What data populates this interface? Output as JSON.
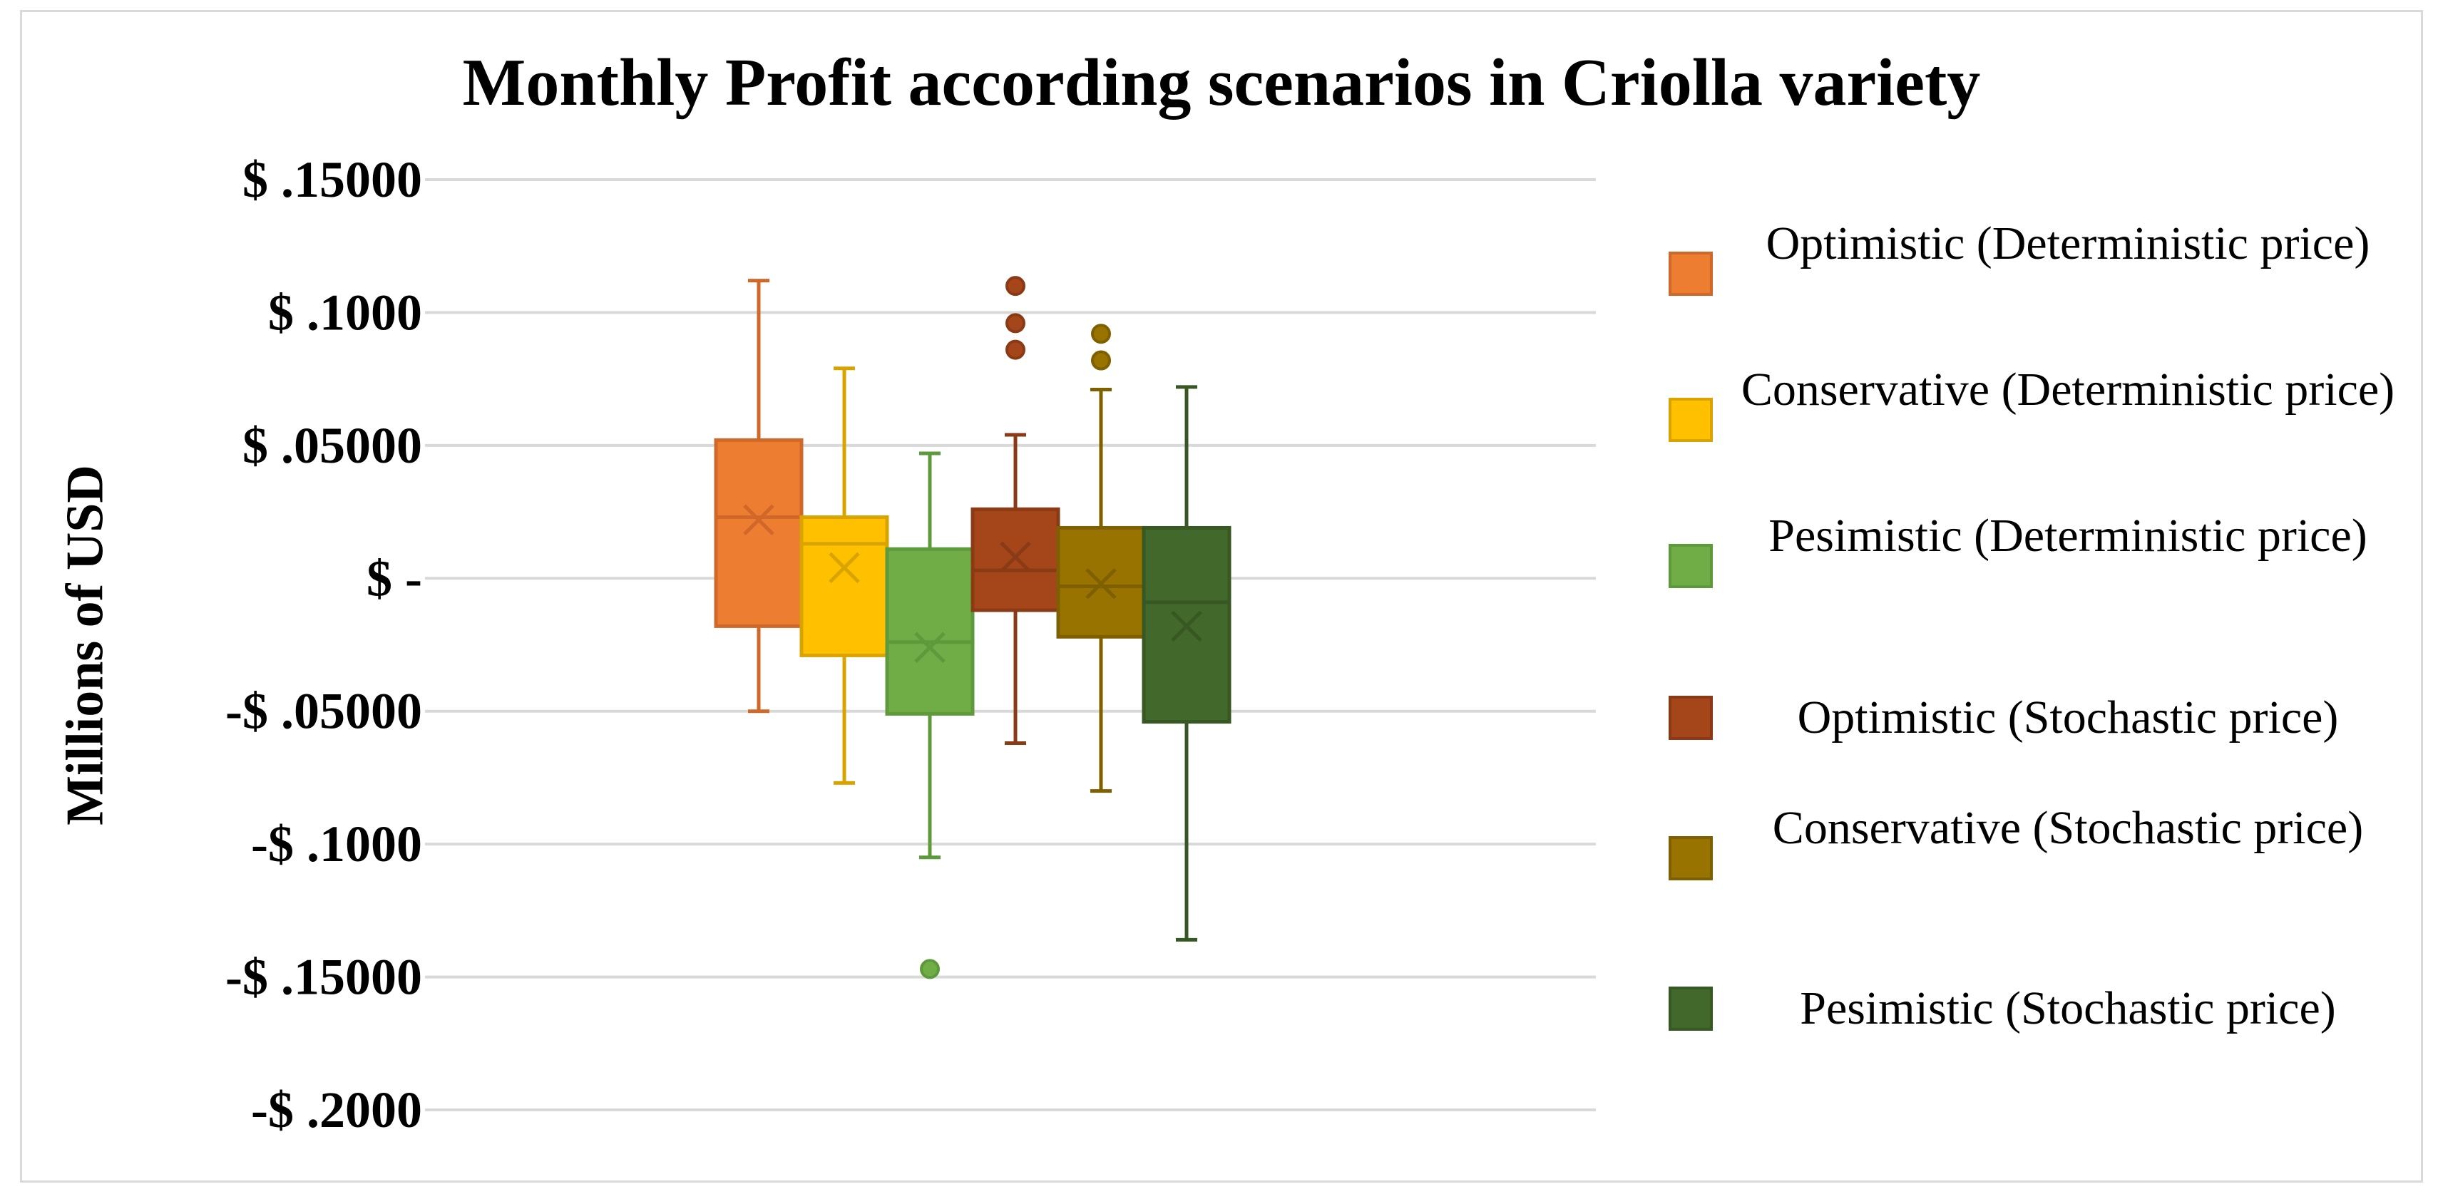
{
  "chart_data": {
    "type": "box",
    "title": "Monthly Profit according scenarios in Criolla variety",
    "xlabel": "",
    "ylabel": "Millions of USD",
    "ylim": [
      -0.2,
      0.15
    ],
    "yticks": [
      0.15,
      0.1,
      0.05,
      0,
      -0.05,
      -0.1,
      -0.15,
      -0.2
    ],
    "ytick_labels": [
      "$ .15000",
      "$ .1000",
      "$ .05000",
      "$ -",
      "-$ .05000",
      "-$ .1000",
      "-$ .15000",
      "-$ .2000"
    ],
    "grid": true,
    "legend_position": "right",
    "series": [
      {
        "name": "Optimistic (Deterministic price)",
        "color": "#ED7D31",
        "line_color": "#D0682A",
        "min": -0.05,
        "q1": -0.018,
        "median": 0.023,
        "q3": 0.052,
        "max": 0.112,
        "mean": 0.022,
        "outliers": []
      },
      {
        "name": "Conservative (Deterministic price)",
        "color": "#FFC000",
        "line_color": "#D9A300",
        "min": -0.077,
        "q1": -0.029,
        "median": 0.013,
        "q3": 0.023,
        "max": 0.079,
        "mean": 0.004,
        "outliers": []
      },
      {
        "name": "Pesimistic (Deterministic price)",
        "color": "#70AD47",
        "line_color": "#5E9A3B",
        "min": -0.105,
        "q1": -0.051,
        "median": -0.024,
        "q3": 0.011,
        "max": 0.047,
        "mean": -0.026,
        "outliers": [
          -0.147
        ]
      },
      {
        "name": "Optimistic (Stochastic price)",
        "color": "#A5451A",
        "line_color": "#8A3A15",
        "min": -0.062,
        "q1": -0.012,
        "median": 0.003,
        "q3": 0.026,
        "max": 0.054,
        "mean": 0.008,
        "outliers": [
          0.086,
          0.096,
          0.11
        ]
      },
      {
        "name": "Conservative (Stochastic price)",
        "color": "#997300",
        "line_color": "#7F6000",
        "min": -0.08,
        "q1": -0.022,
        "median": -0.003,
        "q3": 0.019,
        "max": 0.071,
        "mean": -0.002,
        "outliers": [
          0.082,
          0.092
        ]
      },
      {
        "name": "Pesimistic (Stochastic price)",
        "color": "#43682B",
        "line_color": "#375723",
        "min": -0.136,
        "q1": -0.054,
        "median": -0.009,
        "q3": 0.019,
        "max": 0.072,
        "mean": -0.018,
        "outliers": []
      }
    ]
  },
  "legend": {
    "items": [
      {
        "label": "Optimistic (Deterministic price)",
        "color": "#ED7D31",
        "border": "#D0682A"
      },
      {
        "label": "Conservative (Deterministic price)",
        "color": "#FFC000",
        "border": "#D9A300"
      },
      {
        "label": "Pesimistic (Deterministic price)",
        "color": "#70AD47",
        "border": "#5E9A3B"
      },
      {
        "label": "Optimistic (Stochastic price)",
        "color": "#A5451A",
        "border": "#8A3A15"
      },
      {
        "label": "Conservative (Stochastic price)",
        "color": "#997300",
        "border": "#7F6000"
      },
      {
        "label": "Pesimistic (Stochastic price)",
        "color": "#43682B",
        "border": "#375723"
      }
    ]
  }
}
